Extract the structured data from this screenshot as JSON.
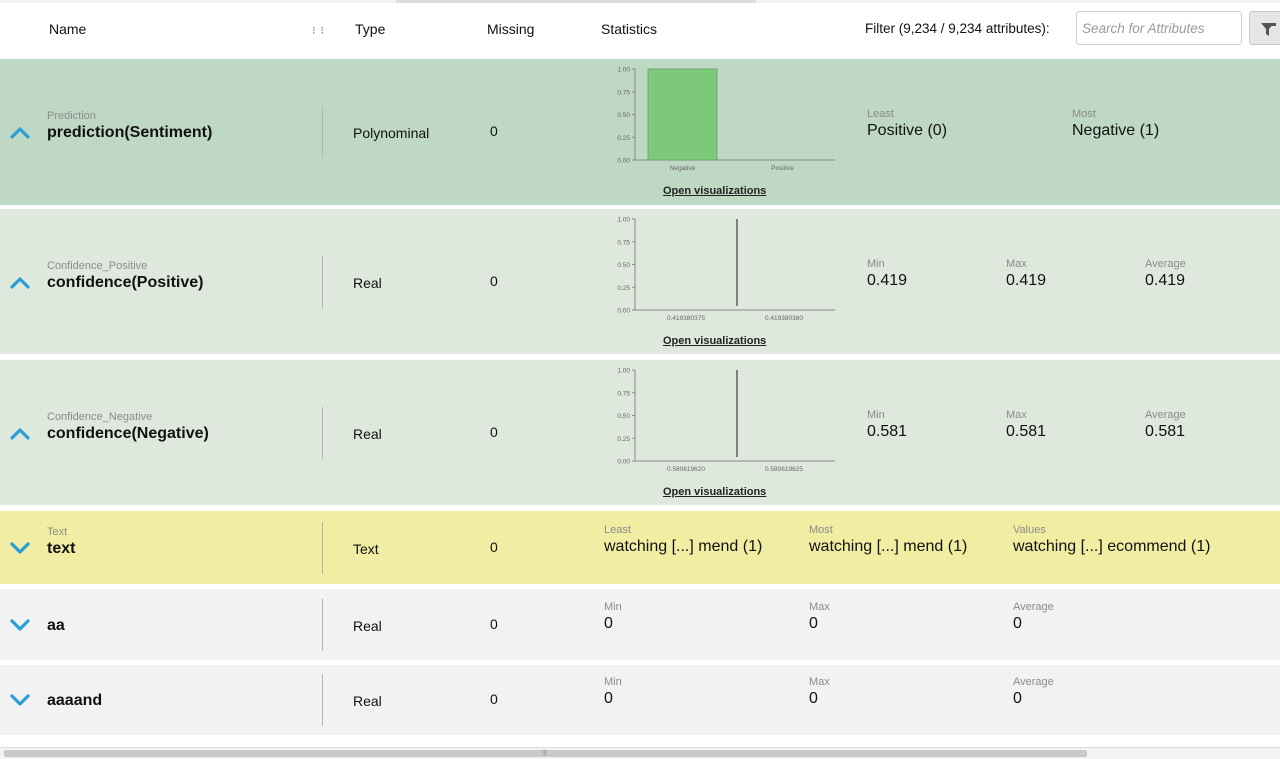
{
  "header": {
    "col_name": "Name",
    "col_type": "Type",
    "col_missing": "Missing",
    "col_statistics": "Statistics",
    "filter_label": "Filter (9,234 / 9,234 attributes):",
    "search_placeholder": "Search for Attributes",
    "resize_handle": "⁝ ⁝"
  },
  "rows": [
    {
      "role": "Prediction",
      "name": "prediction(Sentiment)",
      "type": "Polynominal",
      "missing": "0",
      "expanded": true,
      "bg": "#bfd8c4",
      "open_visualizations": "Open visualizations",
      "stats": [
        {
          "label": "Least",
          "value": "Positive (0)"
        },
        {
          "label": "Most",
          "value": "Negative (1)"
        }
      ]
    },
    {
      "role": "Confidence_Positive",
      "name": "confidence(Positive)",
      "type": "Real",
      "missing": "0",
      "expanded": true,
      "bg": "#dfe8dd",
      "open_visualizations": "Open visualizations",
      "stats": [
        {
          "label": "Min",
          "value": "0.419"
        },
        {
          "label": "Max",
          "value": "0.419"
        },
        {
          "label": "Average",
          "value": "0.419"
        }
      ]
    },
    {
      "role": "Confidence_Negative",
      "name": "confidence(Negative)",
      "type": "Real",
      "missing": "0",
      "expanded": true,
      "bg": "#dfe8dd",
      "open_visualizations": "Open visualizations",
      "stats": [
        {
          "label": "Min",
          "value": "0.581"
        },
        {
          "label": "Max",
          "value": "0.581"
        },
        {
          "label": "Average",
          "value": "0.581"
        }
      ]
    },
    {
      "role": "Text",
      "name": "text",
      "type": "Text",
      "missing": "0",
      "expanded": false,
      "bg": "#f1eda3",
      "stats": [
        {
          "label": "Least",
          "value": "watching [...] mend  (1)"
        },
        {
          "label": "Most",
          "value": "watching [...] mend  (1)"
        },
        {
          "label": "Values",
          "value": "watching [...] ecommend  (1)"
        }
      ]
    },
    {
      "role": "",
      "name": "aa",
      "type": "Real",
      "missing": "0",
      "expanded": false,
      "bg": "#f2f2f2",
      "stats": [
        {
          "label": "Min",
          "value": "0"
        },
        {
          "label": "Max",
          "value": "0"
        },
        {
          "label": "Average",
          "value": "0"
        }
      ]
    },
    {
      "role": "",
      "name": "aaaand",
      "type": "Real",
      "missing": "0",
      "expanded": false,
      "bg": "#f2f2f2",
      "stats": [
        {
          "label": "Min",
          "value": "0"
        },
        {
          "label": "Max",
          "value": "0"
        },
        {
          "label": "Average",
          "value": "0"
        }
      ]
    }
  ],
  "chart_data": [
    {
      "type": "bar",
      "categories": [
        "Negative",
        "Positive"
      ],
      "values": [
        1.0,
        0.0
      ],
      "y_ticks": [
        "1.00",
        "0.75",
        "0.50",
        "0.25",
        "0.00"
      ],
      "ylim": [
        0,
        1
      ],
      "bar_color": "#7dc97a"
    },
    {
      "type": "bar",
      "x_ticks": [
        "0.419380375",
        "0.419380380"
      ],
      "y_ticks": [
        "1.00",
        "0.75",
        "0.50",
        "0.25",
        "0.00"
      ],
      "ylim": [
        0,
        1
      ],
      "spike_value": 1.0
    },
    {
      "type": "bar",
      "x_ticks": [
        "0.580619620",
        "0.580619625"
      ],
      "y_ticks": [
        "1.00",
        "0.75",
        "0.50",
        "0.25",
        "0.00"
      ],
      "ylim": [
        0,
        1
      ],
      "spike_value": 1.0
    }
  ],
  "colors": {
    "toggle_icon": "#2a9fd6",
    "prediction_bg": "#bfd8c4",
    "confidence_bg": "#dfe8dd",
    "text_bg": "#f1eda3",
    "regular_bg": "#f2f2f2"
  }
}
